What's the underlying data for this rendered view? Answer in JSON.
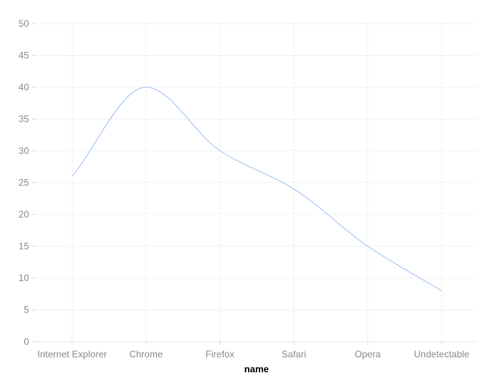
{
  "chart_data": {
    "type": "line",
    "smooth": true,
    "title": "",
    "xlabel": "name",
    "ylabel": "",
    "categories": [
      "Internet Explorer",
      "Chrome",
      "Firefox",
      "Safari",
      "Opera",
      "Undetectable"
    ],
    "series": [
      {
        "values": [
          26,
          40,
          30,
          24,
          15,
          8
        ],
        "color": "#a3c4f3"
      }
    ],
    "ylim": [
      0,
      50
    ],
    "yticks": [
      0,
      5,
      10,
      15,
      20,
      25,
      30,
      35,
      40,
      45,
      50
    ],
    "grid": true,
    "legend": "none"
  }
}
